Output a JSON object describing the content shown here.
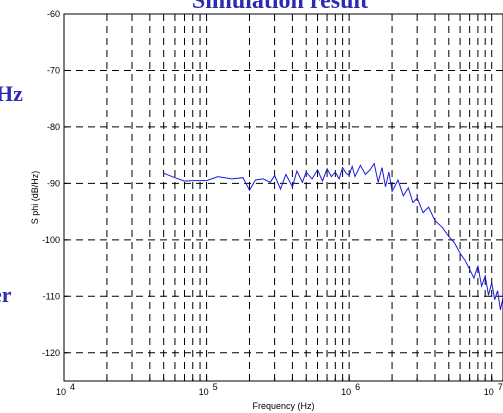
{
  "colors": {
    "title": "#2b2bb3",
    "series": "#1a1adc",
    "grid": "#000000",
    "background": "#ffffff"
  },
  "slide": {
    "title_fragment": "Simulation result",
    "left_fragment_top": "Hz",
    "left_fragment_bottom": "er"
  },
  "chart_data": {
    "type": "line",
    "title": "",
    "xlabel": "Frequency (Hz)",
    "ylabel": "S phi (dB/Hz)",
    "xscale": "log",
    "xlim": [
      10000,
      12000000
    ],
    "ylim": [
      -125,
      -60
    ],
    "grid": true,
    "xticks": [
      {
        "label": "10",
        "exp": "4",
        "value": 10000
      },
      {
        "label": "10",
        "exp": "5",
        "value": 100000
      },
      {
        "label": "10",
        "exp": "6",
        "value": 1000000
      },
      {
        "label": "10",
        "exp": "7",
        "value": 10000000
      }
    ],
    "yticks": [
      {
        "label": "-60",
        "value": -60
      },
      {
        "label": "-70",
        "value": -70
      },
      {
        "label": "-80",
        "value": -80
      },
      {
        "label": "-90",
        "value": -90
      },
      {
        "label": "-100",
        "value": -100
      },
      {
        "label": "-110",
        "value": -110
      },
      {
        "label": "-120",
        "value": -120
      }
    ],
    "series": [
      {
        "x": [
          50000,
          60000,
          70000,
          80000,
          100000,
          120000,
          150000,
          180000,
          200000,
          220000,
          250000,
          280000,
          300000,
          330000,
          360000,
          400000,
          430000,
          470000,
          500000,
          550000,
          600000,
          650000,
          700000,
          750000,
          800000,
          850000,
          900000,
          950000,
          1000000,
          1050000,
          1100000,
          1200000,
          1300000,
          1400000,
          1500000,
          1600000,
          1700000,
          1800000,
          1900000,
          2000000,
          2200000,
          2400000,
          2600000,
          2800000,
          3000000,
          3300000,
          3600000,
          4000000,
          4500000,
          5000000,
          5500000,
          6000000,
          6500000,
          7000000,
          7500000,
          8000000,
          8500000,
          9000000,
          9500000,
          10000000,
          10500000,
          11000000,
          11500000,
          12000000
        ],
        "values": [
          -88.2,
          -89.0,
          -89.6,
          -89.5,
          -89.5,
          -88.8,
          -89.2,
          -89.0,
          -91.2,
          -89.4,
          -89.2,
          -89.8,
          -88.6,
          -91.0,
          -88.4,
          -90.6,
          -87.8,
          -89.8,
          -88.0,
          -89.2,
          -87.6,
          -89.6,
          -87.4,
          -88.8,
          -88.0,
          -89.2,
          -87.2,
          -88.2,
          -88.6,
          -87.0,
          -88.8,
          -86.8,
          -88.4,
          -87.6,
          -86.5,
          -89.8,
          -87.2,
          -90.6,
          -88.0,
          -91.4,
          -89.4,
          -92.2,
          -90.8,
          -93.4,
          -92.6,
          -95.2,
          -94.2,
          -96.6,
          -97.8,
          -99.4,
          -100.6,
          -102.4,
          -103.6,
          -105.2,
          -106.8,
          -104.6,
          -108.2,
          -106.4,
          -109.8,
          -107.6,
          -110.6,
          -109.0,
          -112.4,
          -110.2
        ]
      }
    ]
  }
}
